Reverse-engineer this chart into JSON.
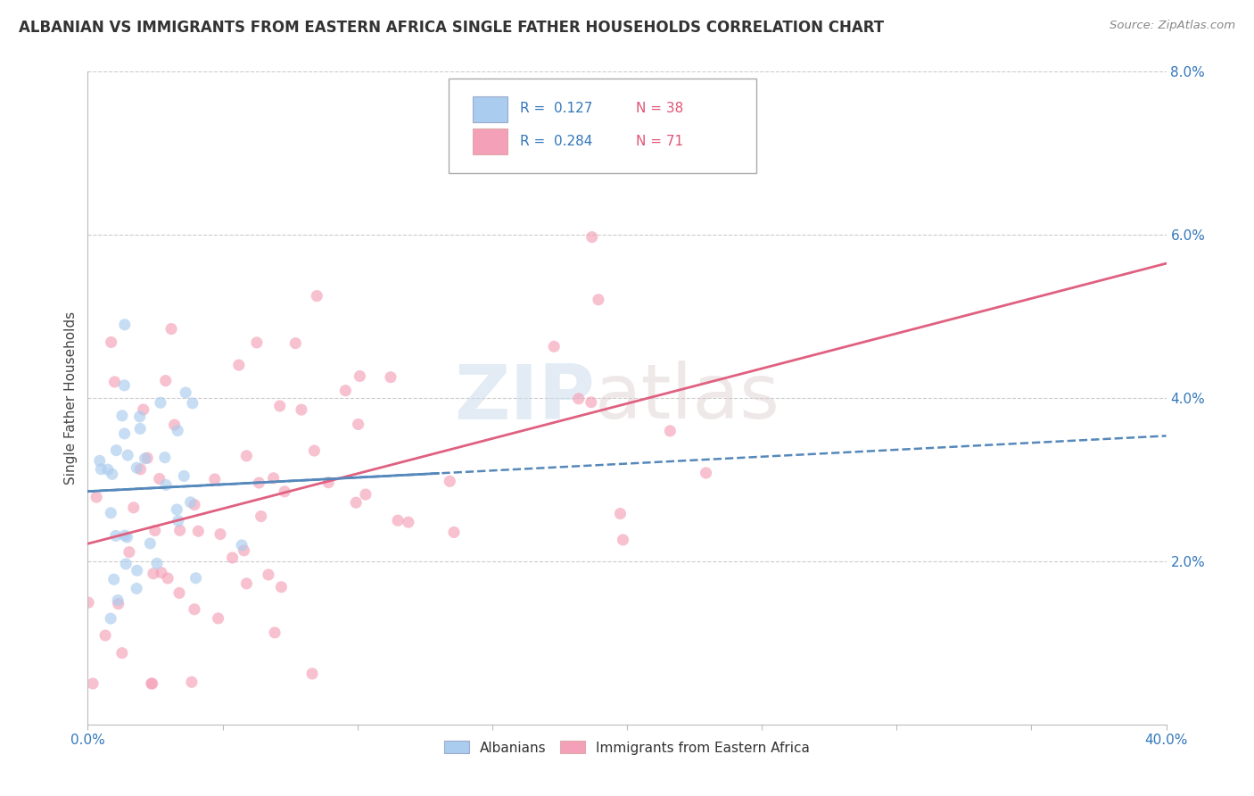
{
  "title": "ALBANIAN VS IMMIGRANTS FROM EASTERN AFRICA SINGLE FATHER HOUSEHOLDS CORRELATION CHART",
  "source": "Source: ZipAtlas.com",
  "ylabel": "Single Father Households",
  "xlim": [
    0,
    0.4
  ],
  "ylim": [
    0,
    0.08
  ],
  "xticks": [
    0.0,
    0.05,
    0.1,
    0.15,
    0.2,
    0.25,
    0.3,
    0.35,
    0.4
  ],
  "yticks": [
    0.0,
    0.02,
    0.04,
    0.06,
    0.08
  ],
  "legend_label1": "Albanians",
  "legend_label2": "Immigrants from Eastern Africa",
  "r1": 0.127,
  "n1": 38,
  "r2": 0.284,
  "n2": 71,
  "color_blue": "#aaccee",
  "color_pink": "#f4a0b8",
  "color_blue_line": "#5588bb",
  "color_pink_line": "#e06080",
  "watermark_zip": "ZIP",
  "watermark_atlas": "atlas",
  "background_color": "#ffffff",
  "grid_color": "#cccccc",
  "seed1": 42,
  "seed2": 77,
  "scatter_alpha": 0.65,
  "scatter_size": 90,
  "title_fontsize": 12,
  "tick_fontsize": 11,
  "ylabel_fontsize": 11
}
